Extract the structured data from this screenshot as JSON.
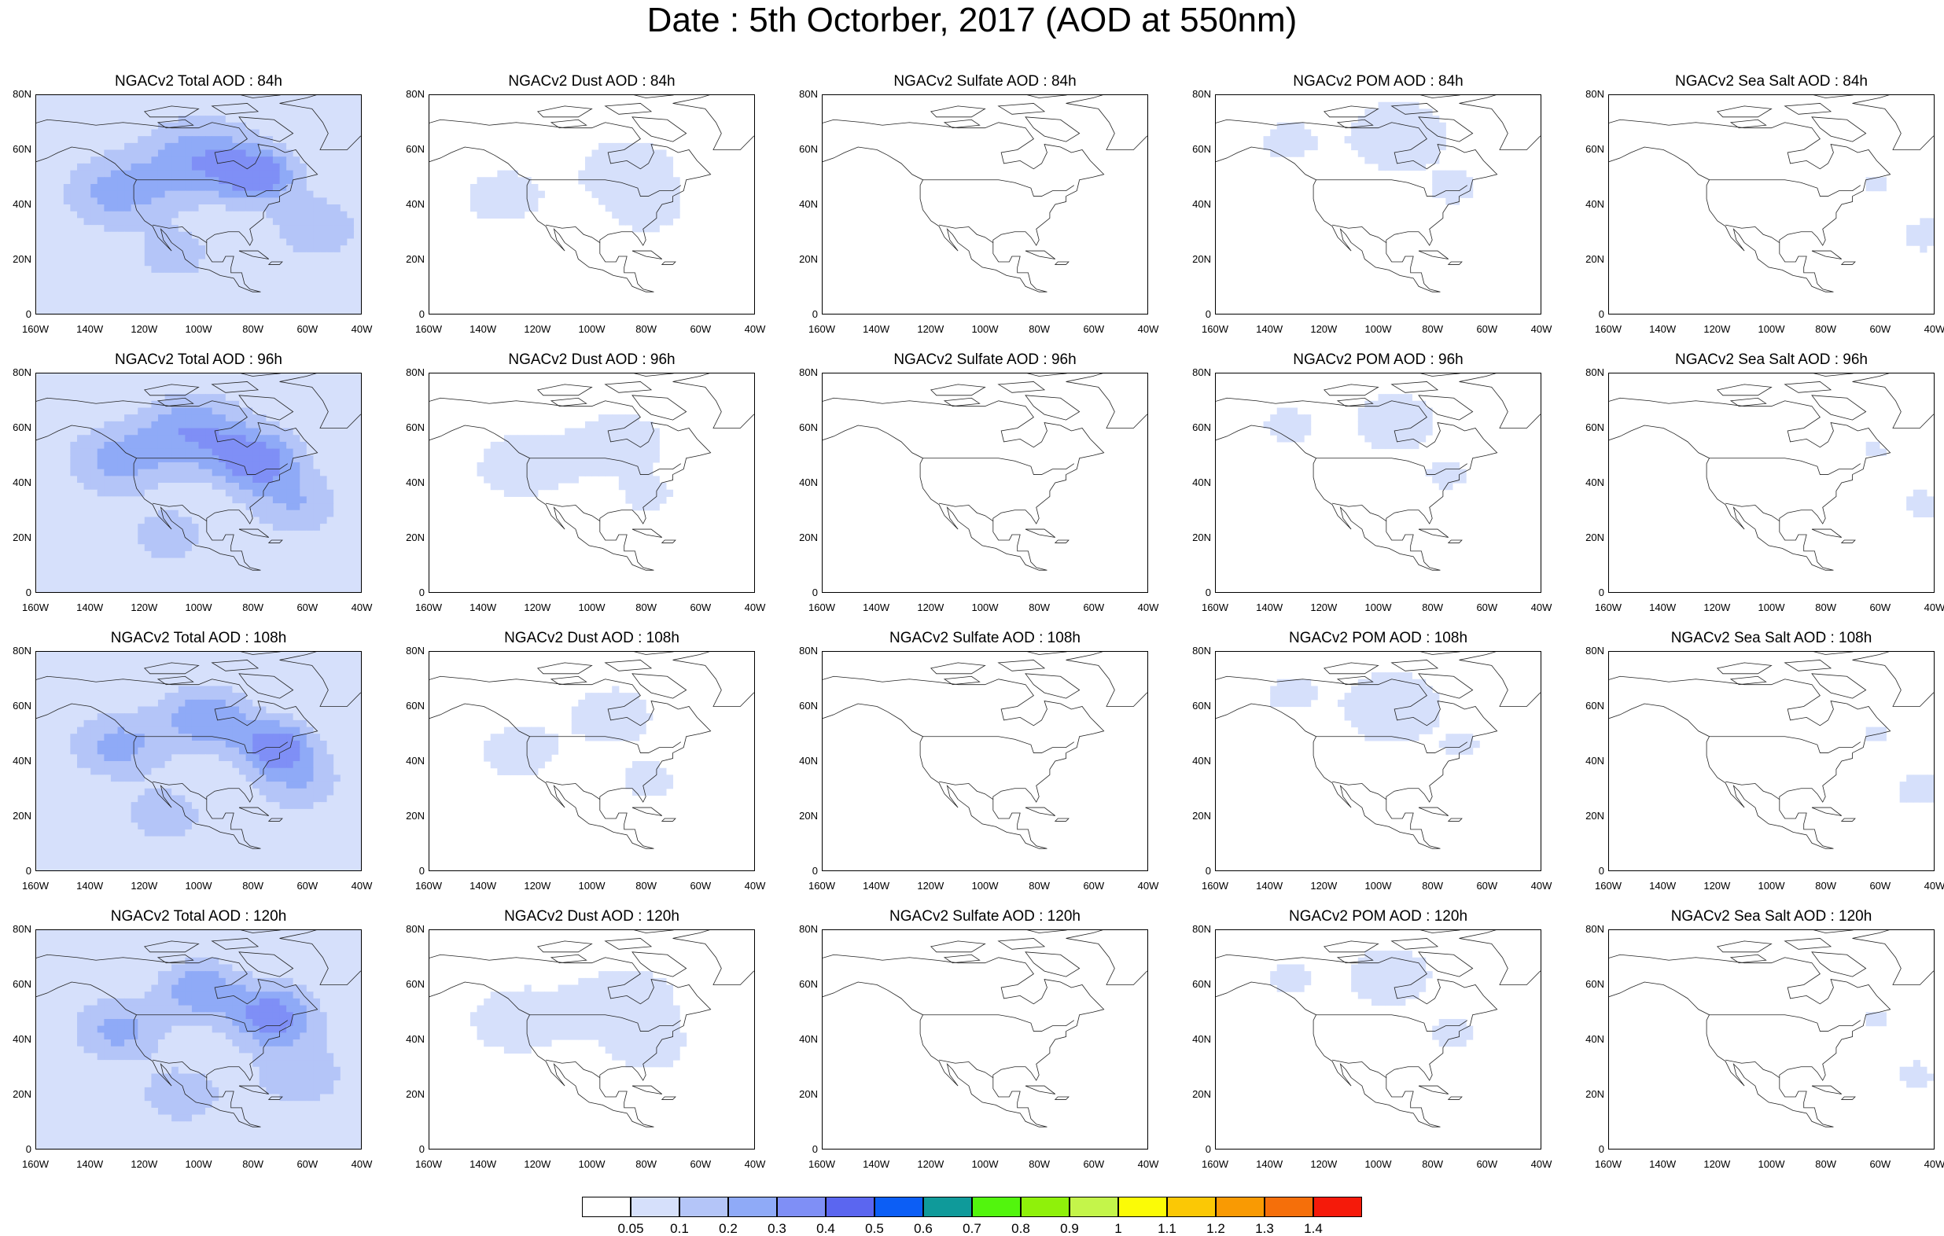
{
  "title": "Date : 5th Octorber, 2017 (AOD at 550nm)",
  "lat_ticks": [
    "80N",
    "60N",
    "40N",
    "20N",
    "0"
  ],
  "lon_ticks": [
    "160W",
    "140W",
    "120W",
    "100W",
    "80W",
    "60W",
    "40W"
  ],
  "species": [
    {
      "id": "total",
      "intensity": 1.0
    },
    {
      "id": "dust",
      "intensity": 0.55
    },
    {
      "id": "sulfate",
      "intensity": 0.3
    },
    {
      "id": "pom",
      "intensity": 0.6
    },
    {
      "id": "seasalt",
      "intensity": 0.45
    }
  ],
  "panel_titles": [
    [
      "NGACv2 Total AOD : 84h",
      "NGACv2 Dust AOD : 84h",
      "NGACv2 Sulfate AOD : 84h",
      "NGACv2 POM AOD : 84h",
      "NGACv2 Sea Salt AOD : 84h"
    ],
    [
      "NGACv2 Total AOD : 96h",
      "NGACv2 Dust AOD : 96h",
      "NGACv2 Sulfate AOD : 96h",
      "NGACv2 POM AOD : 96h",
      "NGACv2 Sea Salt AOD : 96h"
    ],
    [
      "NGACv2 Total AOD : 108h",
      "NGACv2 Dust AOD : 108h",
      "NGACv2 Sulfate AOD : 108h",
      "NGACv2 POM AOD : 108h",
      "NGACv2 Sea Salt AOD : 108h"
    ],
    [
      "NGACv2 Total AOD : 120h",
      "NGACv2 Dust AOD : 120h",
      "NGACv2 Sulfate AOD : 120h",
      "NGACv2 POM AOD : 120h",
      "NGACv2 Sea Salt  AOD : 120h"
    ]
  ],
  "colorbar": {
    "colors": [
      "#ffffff",
      "#d6e0fb",
      "#b4c5f8",
      "#8faaf7",
      "#7f8ff6",
      "#5b66f0",
      "#0c5ef5",
      "#0f9a9a",
      "#52f50d",
      "#8ff10a",
      "#c4f54a",
      "#fbfb06",
      "#fbc805",
      "#f99a03",
      "#f56f0a",
      "#f51a0a"
    ],
    "labels": [
      "0.05",
      "0.1",
      "0.2",
      "0.3",
      "0.4",
      "0.5",
      "0.6",
      "0.7",
      "0.8",
      "0.9",
      "1",
      "1.1",
      "1.2",
      "1.3",
      "1.4"
    ]
  }
}
